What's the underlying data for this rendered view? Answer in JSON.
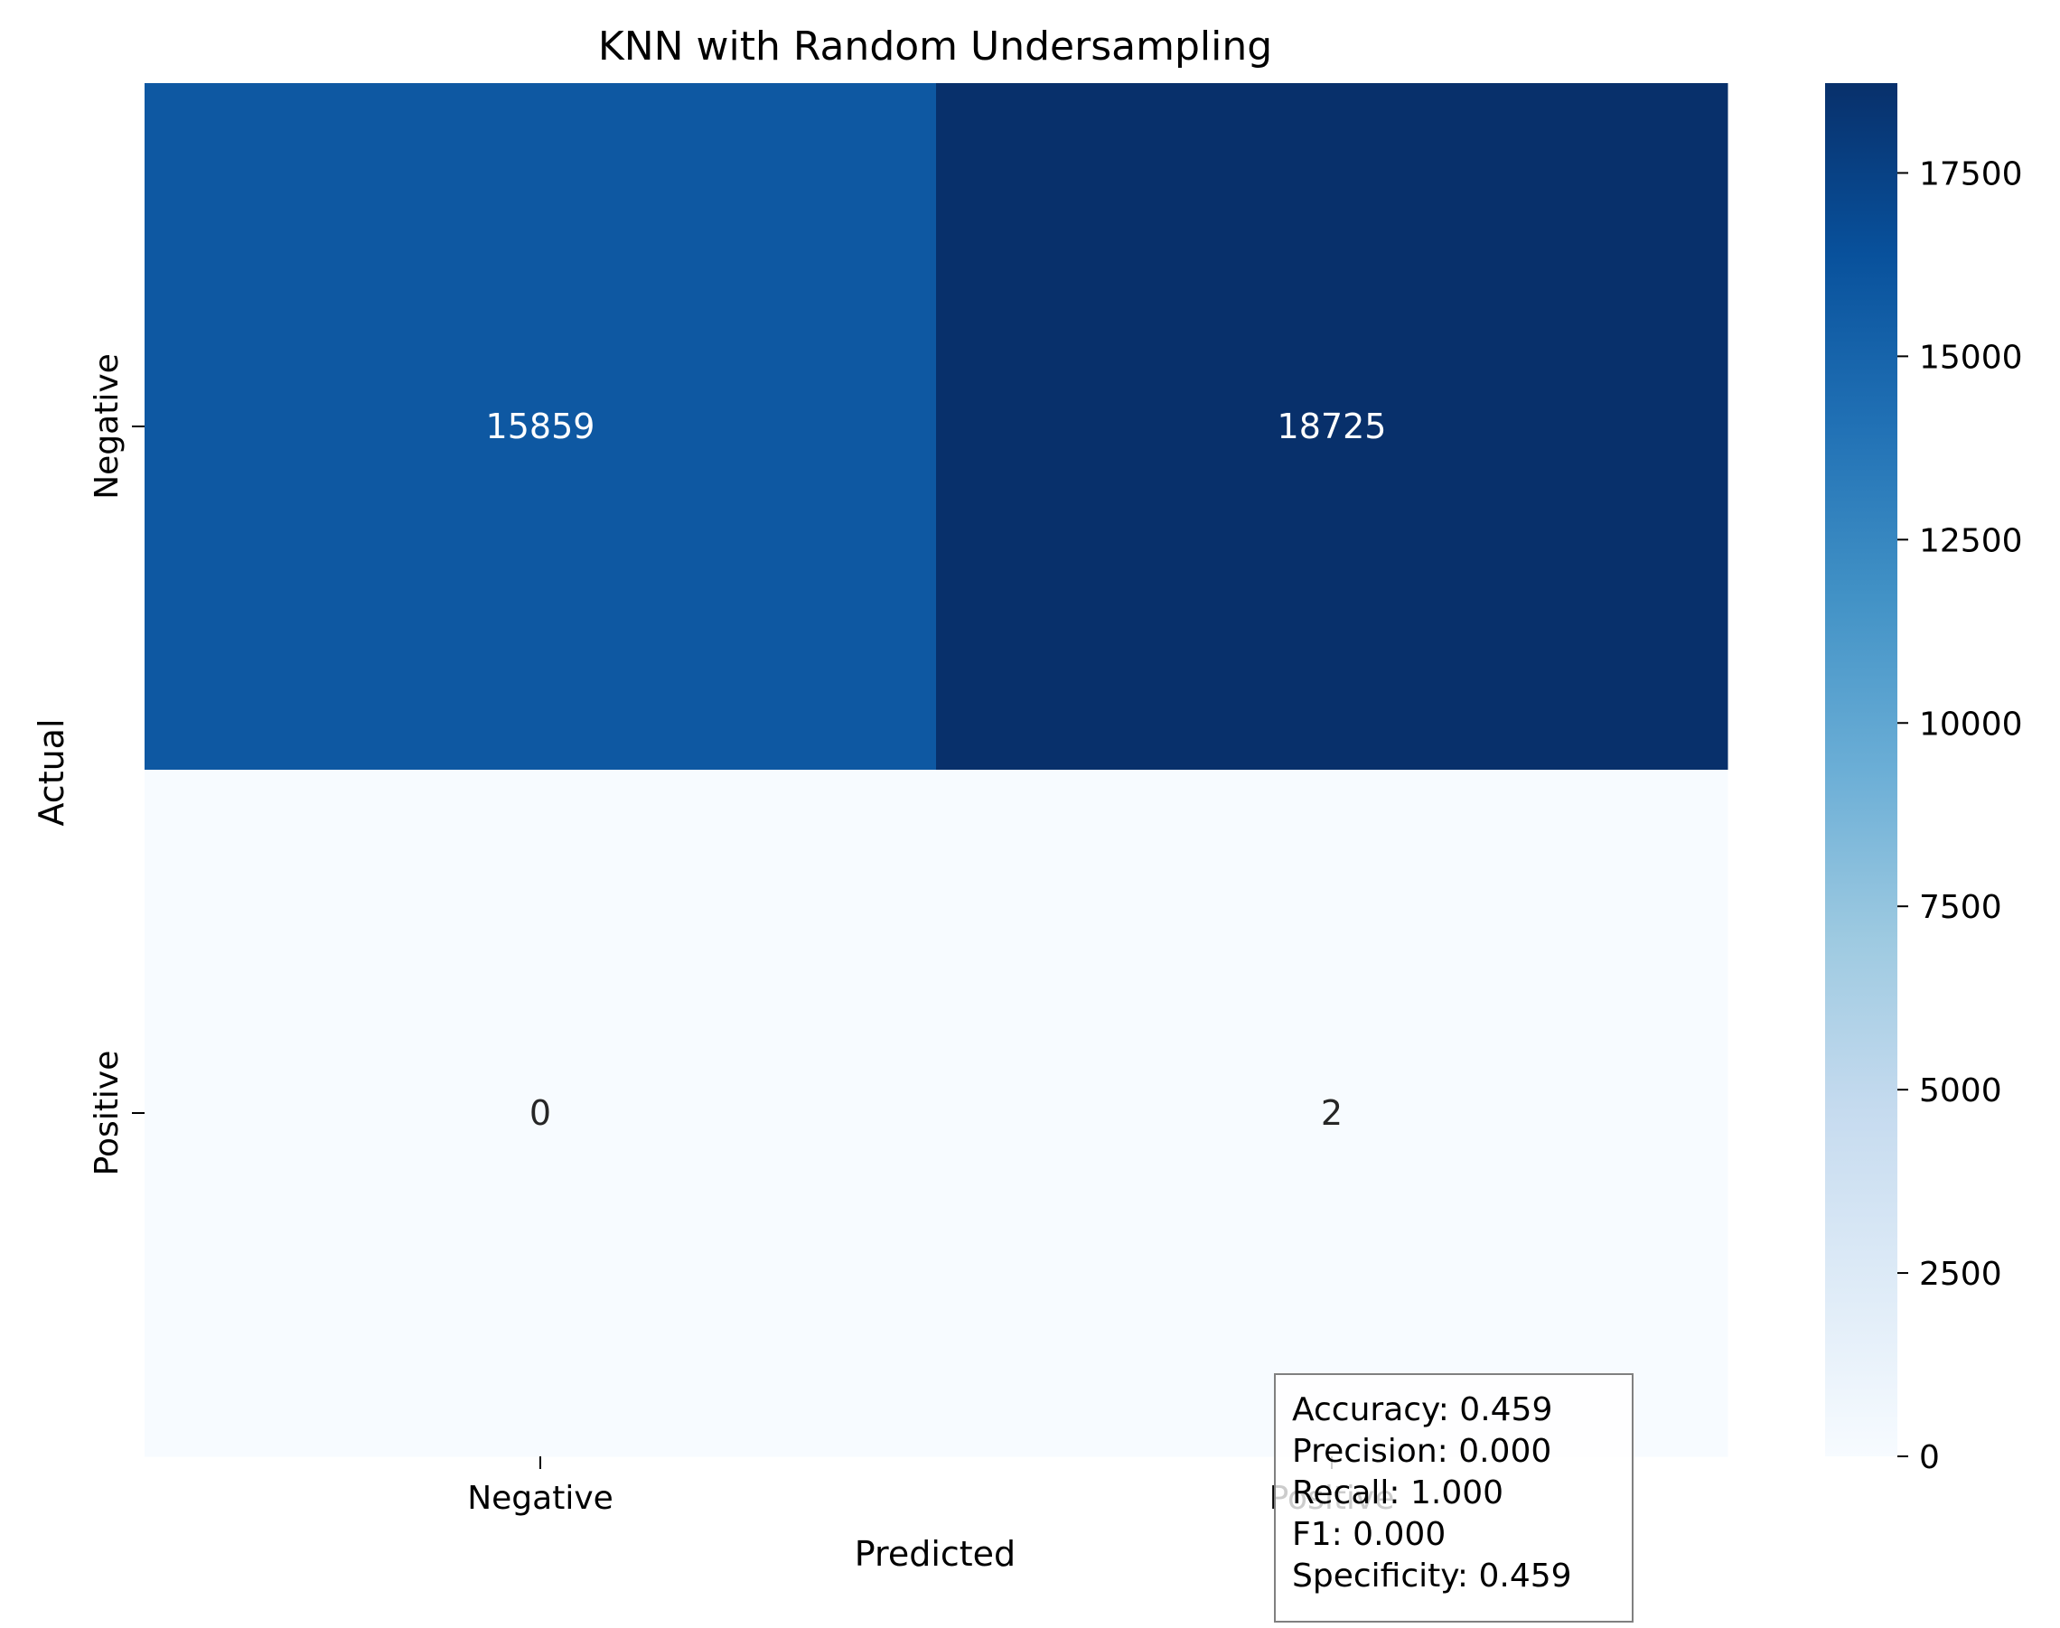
{
  "chart_data": {
    "type": "heatmap",
    "title": "KNN with Random Undersampling",
    "xlabel": "Predicted",
    "ylabel": "Actual",
    "x_categories": [
      "Negative",
      "Positive"
    ],
    "y_categories": [
      "Negative",
      "Positive"
    ],
    "values": [
      [
        15859,
        18725
      ],
      [
        0,
        2
      ]
    ],
    "cell_labels": [
      [
        "15859",
        "18725"
      ],
      [
        "0",
        "2"
      ]
    ],
    "colormap": "Blues",
    "colorbar": {
      "range": [
        0,
        18725
      ],
      "ticks": [
        0,
        2500,
        5000,
        7500,
        10000,
        12500,
        15000,
        17500
      ],
      "tick_labels": [
        "0",
        "2500",
        "5000",
        "7500",
        "10000",
        "12500",
        "15000",
        "17500"
      ]
    },
    "metrics": [
      "Accuracy: 0.459",
      "Precision: 0.000",
      "Recall: 1.000",
      "F1: 0.000",
      "Specificity: 0.459"
    ]
  }
}
